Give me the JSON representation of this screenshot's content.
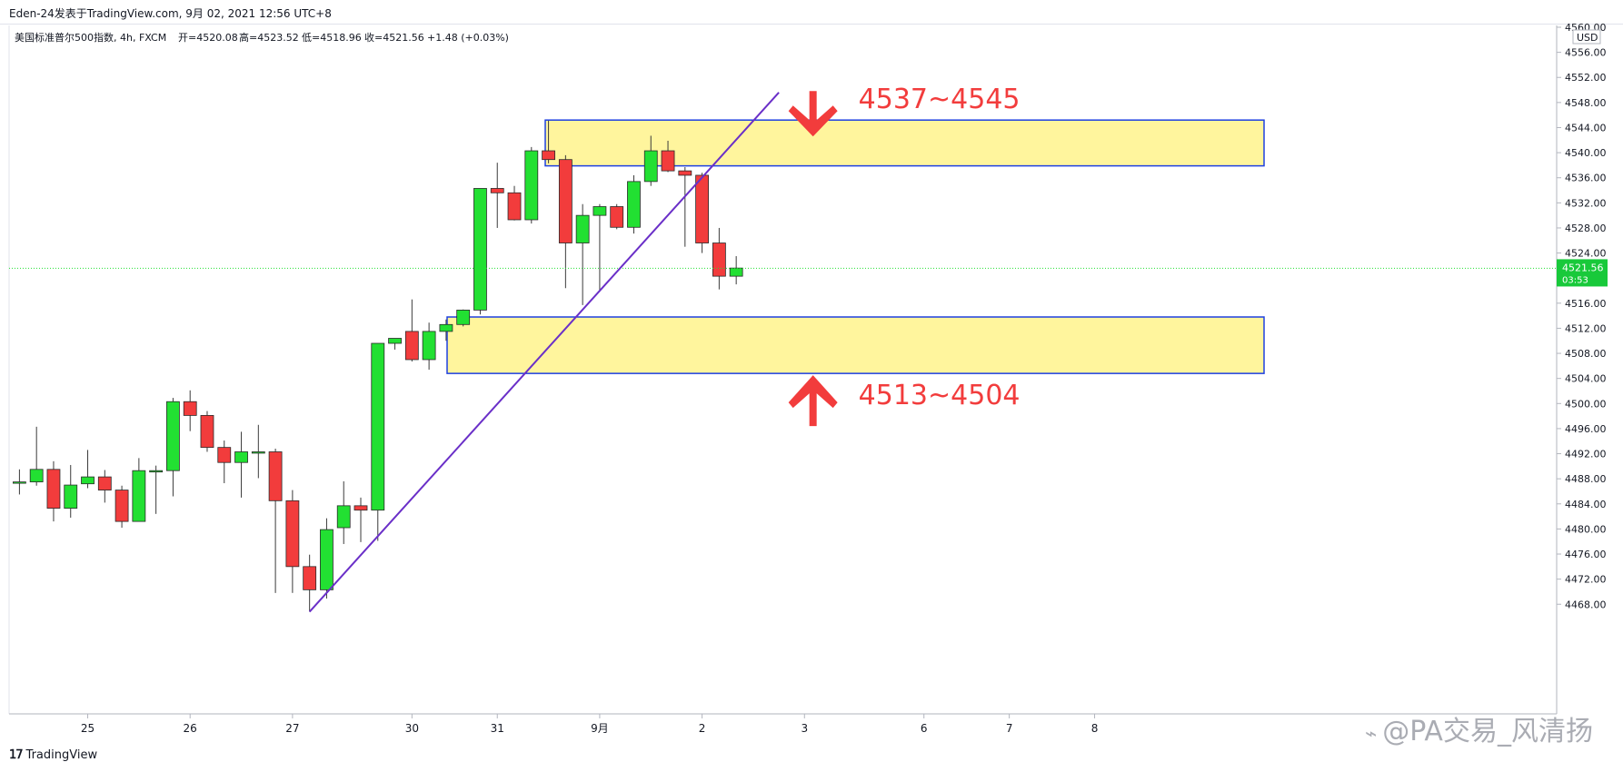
{
  "header": {
    "text": "Eden-24发表于TradingView.com, 9月 02, 2021 12:56 UTC+8"
  },
  "legend": {
    "symbol": "美国标准普尔500指数, 4h, FXCM",
    "open": "开=4520.08",
    "high": "高=4523.52",
    "low": "低=4518.96",
    "close": "收=4521.56",
    "change": "+1.48 (+0.03%)"
  },
  "footer": {
    "logo": "TradingView",
    "watermark": "@PA交易_风清扬"
  },
  "colors": {
    "up": "#22e032",
    "down": "#f23c3c",
    "zone_fill": "#fff59d",
    "zone_border": "#1e40e0",
    "trendline": "#6a2fc8",
    "annotation": "#f23c3c",
    "price_label_bg": "#18c93a"
  },
  "chart_data": {
    "type": "candlestick",
    "currency": "USD",
    "ylim": [
      4464,
      4560
    ],
    "y_ticks": [
      4468,
      4472,
      4476,
      4480,
      4484,
      4488,
      4492,
      4496,
      4500,
      4504,
      4508,
      4512,
      4516,
      4520,
      4524,
      4528,
      4532,
      4536,
      4540,
      4544,
      4548,
      4552,
      4556,
      4560
    ],
    "x_ticks": [
      {
        "label": "25",
        "i": 4
      },
      {
        "label": "26",
        "i": 10
      },
      {
        "label": "27",
        "i": 16
      },
      {
        "label": "30",
        "i": 23
      },
      {
        "label": "31",
        "i": 28
      },
      {
        "label": "9月",
        "i": 34
      },
      {
        "label": "2",
        "i": 40
      },
      {
        "label": "3",
        "i": 46
      },
      {
        "label": "6",
        "i": 53
      },
      {
        "label": "7",
        "i": 58
      },
      {
        "label": "8",
        "i": 63
      }
    ],
    "candles": [
      {
        "o": 4487.5,
        "h": 4489.5,
        "l": 4485.5,
        "c": 4487.5
      },
      {
        "o": 4487.5,
        "h": 4496.3,
        "l": 4486.9,
        "c": 4489.5
      },
      {
        "o": 4489.5,
        "h": 4490.8,
        "l": 4481.2,
        "c": 4483.3
      },
      {
        "o": 4483.3,
        "h": 4490.2,
        "l": 4481.8,
        "c": 4487.0
      },
      {
        "o": 4487.2,
        "h": 4492.6,
        "l": 4486.5,
        "c": 4488.3
      },
      {
        "o": 4488.3,
        "h": 4489.4,
        "l": 4484.2,
        "c": 4486.2
      },
      {
        "o": 4486.2,
        "h": 4486.9,
        "l": 4480.2,
        "c": 4481.2
      },
      {
        "o": 4481.2,
        "h": 4491.3,
        "l": 4481.2,
        "c": 4489.3
      },
      {
        "o": 4489.3,
        "h": 4490.1,
        "l": 4482.4,
        "c": 4489.3
      },
      {
        "o": 4489.3,
        "h": 4500.9,
        "l": 4485.2,
        "c": 4500.3
      },
      {
        "o": 4500.3,
        "h": 4502.1,
        "l": 4495.6,
        "c": 4498.1
      },
      {
        "o": 4498.1,
        "h": 4498.8,
        "l": 4492.3,
        "c": 4493.0
      },
      {
        "o": 4493.0,
        "h": 4494.1,
        "l": 4487.3,
        "c": 4490.6
      },
      {
        "o": 4490.6,
        "h": 4495.5,
        "l": 4485.0,
        "c": 4492.3
      },
      {
        "o": 4492.1,
        "h": 4496.6,
        "l": 4488.1,
        "c": 4492.3
      },
      {
        "o": 4492.3,
        "h": 4492.8,
        "l": 4469.8,
        "c": 4484.5
      },
      {
        "o": 4484.5,
        "h": 4486.2,
        "l": 4469.8,
        "c": 4474.0
      },
      {
        "o": 4474.0,
        "h": 4475.9,
        "l": 4466.8,
        "c": 4470.3
      },
      {
        "o": 4470.3,
        "h": 4481.7,
        "l": 4468.9,
        "c": 4479.9
      },
      {
        "o": 4480.2,
        "h": 4487.6,
        "l": 4477.6,
        "c": 4483.7
      },
      {
        "o": 4483.7,
        "h": 4485.0,
        "l": 4477.9,
        "c": 4483.0
      },
      {
        "o": 4483.0,
        "h": 4509.6,
        "l": 4478.1,
        "c": 4509.6
      },
      {
        "o": 4509.6,
        "h": 4510.4,
        "l": 4508.6,
        "c": 4510.4
      },
      {
        "o": 4511.5,
        "h": 4516.6,
        "l": 4506.7,
        "c": 4507.0
      },
      {
        "o": 4507.0,
        "h": 4512.9,
        "l": 4505.4,
        "c": 4511.5
      },
      {
        "o": 4511.5,
        "h": 4513.4,
        "l": 4510.0,
        "c": 4512.6
      },
      {
        "o": 4512.6,
        "h": 4515.0,
        "l": 4512.3,
        "c": 4514.9
      },
      {
        "o": 4514.9,
        "h": 4534.3,
        "l": 4514.2,
        "c": 4534.3
      },
      {
        "o": 4534.3,
        "h": 4538.4,
        "l": 4528.0,
        "c": 4533.6
      },
      {
        "o": 4533.6,
        "h": 4534.7,
        "l": 4529.2,
        "c": 4529.3
      },
      {
        "o": 4529.3,
        "h": 4540.9,
        "l": 4528.7,
        "c": 4540.3
      },
      {
        "o": 4540.3,
        "h": 4545.1,
        "l": 4538.3,
        "c": 4538.9
      },
      {
        "o": 4538.9,
        "h": 4539.6,
        "l": 4518.4,
        "c": 4525.6
      },
      {
        "o": 4525.6,
        "h": 4531.8,
        "l": 4515.7,
        "c": 4530.0
      },
      {
        "o": 4530.0,
        "h": 4531.8,
        "l": 4518.1,
        "c": 4531.4
      },
      {
        "o": 4531.4,
        "h": 4531.8,
        "l": 4527.8,
        "c": 4528.1
      },
      {
        "o": 4528.1,
        "h": 4536.4,
        "l": 4527.1,
        "c": 4535.4
      },
      {
        "o": 4535.4,
        "h": 4542.7,
        "l": 4534.7,
        "c": 4540.3
      },
      {
        "o": 4540.3,
        "h": 4541.9,
        "l": 4536.9,
        "c": 4537.1
      },
      {
        "o": 4537.1,
        "h": 4537.7,
        "l": 4525.0,
        "c": 4536.4
      },
      {
        "o": 4536.4,
        "h": 4536.8,
        "l": 4524.0,
        "c": 4525.6
      },
      {
        "o": 4525.6,
        "h": 4528.0,
        "l": 4518.2,
        "c": 4520.3
      },
      {
        "o": 4520.3,
        "h": 4523.5,
        "l": 4519.0,
        "c": 4521.6
      }
    ],
    "zones": [
      {
        "from": 4537.9,
        "to": 4545.2
      },
      {
        "from": 4504.8,
        "to": 4513.8
      }
    ],
    "trendline": {
      "i1": 17,
      "p1": 4466.8,
      "i2": 44.5,
      "p2": 4549.6
    },
    "annotations": [
      {
        "text": "4537~4545",
        "direction": "down",
        "i": 46.5,
        "price": 4545.2
      },
      {
        "text": "4513~4504",
        "direction": "up",
        "i": 46.5,
        "price": 4504.8
      }
    ],
    "last_price": {
      "value": "4521.56",
      "countdown": "03:53",
      "price": 4521.56
    }
  }
}
